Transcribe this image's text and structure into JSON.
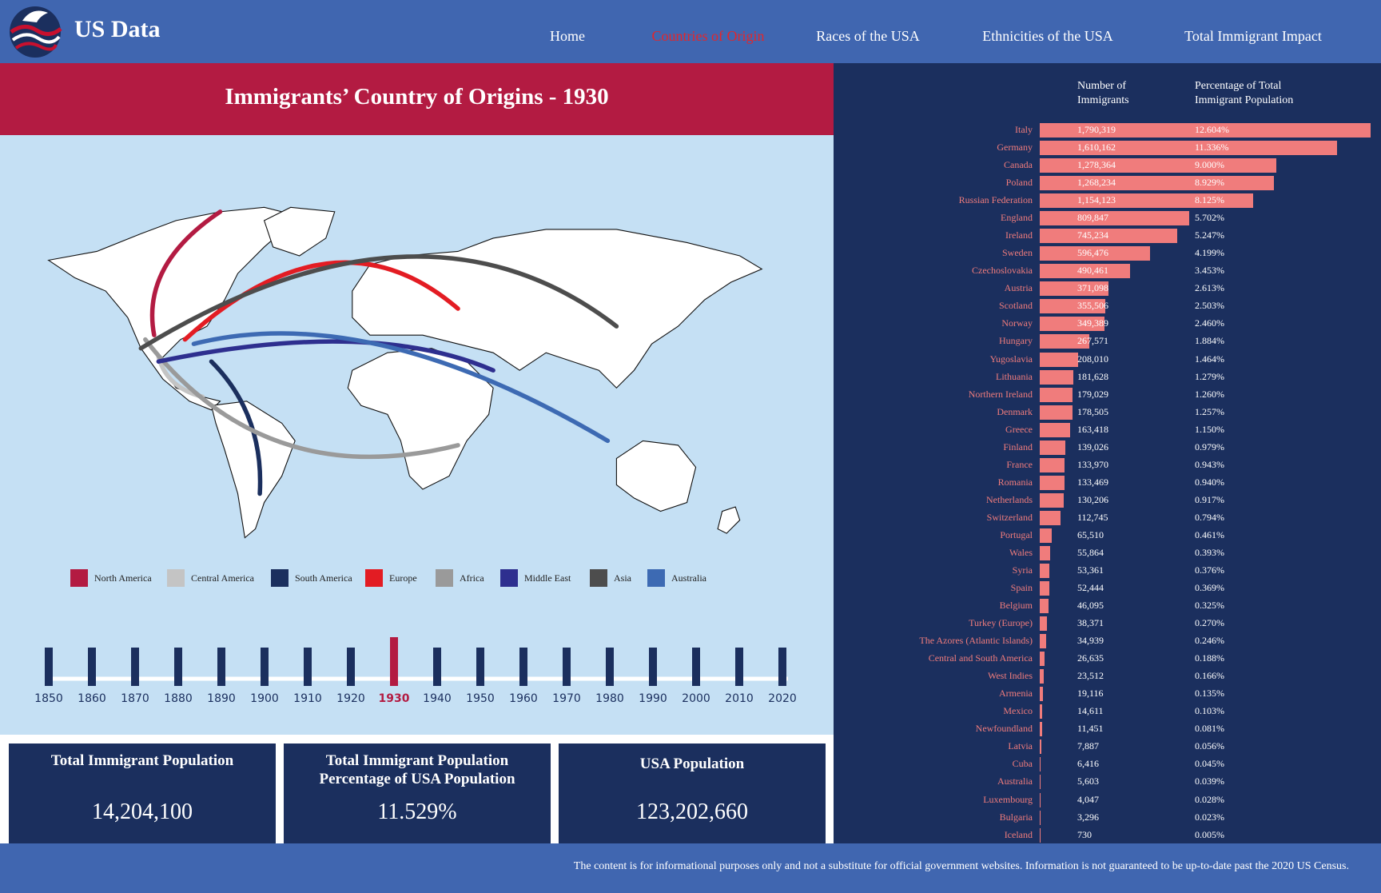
{
  "nav": {
    "brand": "US Data",
    "links": [
      {
        "label": "Home",
        "active": false
      },
      {
        "label": "Countries of Origin",
        "active": true
      },
      {
        "label": "Races of the USA",
        "active": false
      },
      {
        "label": "Ethnicities of the USA",
        "active": false
      },
      {
        "label": "Total Immigrant Impact",
        "active": false
      }
    ]
  },
  "map": {
    "title": "Immigrants’ Country of Origins - 1930",
    "legend": [
      {
        "name": "North America",
        "color": "#b31b42"
      },
      {
        "name": "Central America",
        "color": "#c4c4c4"
      },
      {
        "name": "South America",
        "color": "#1b2f5e"
      },
      {
        "name": "Europe",
        "color": "#e31c23"
      },
      {
        "name": "Africa",
        "color": "#9a9a9a"
      },
      {
        "name": "Middle East",
        "color": "#2e2f8f"
      },
      {
        "name": "Asia",
        "color": "#4d4d4d"
      },
      {
        "name": "Australia",
        "color": "#3d6ab3"
      }
    ]
  },
  "timeline": {
    "years": [
      1850,
      1860,
      1870,
      1880,
      1890,
      1900,
      1910,
      1920,
      1930,
      1940,
      1950,
      1960,
      1970,
      1980,
      1990,
      2000,
      2010,
      2020
    ],
    "selected": 1930
  },
  "stats": [
    {
      "label": "Total Immigrant Population",
      "value": "14,204,100"
    },
    {
      "label": "Total Immigrant Population Percentage of USA Population",
      "value": "11.529%"
    },
    {
      "label": "USA Population",
      "value": "123,202,660"
    }
  ],
  "table": {
    "headers": [
      "Number of Immigrants",
      "Percentage of Total Immigrant Population"
    ],
    "rows": [
      {
        "country": "Italy",
        "immigrants": "1,790,319",
        "share": 12.604,
        "share_label": "12.604%"
      },
      {
        "country": "Germany",
        "immigrants": "1,610,162",
        "share": 11.336,
        "share_label": "11.336%"
      },
      {
        "country": "Canada",
        "immigrants": "1,278,364",
        "share": 9.0,
        "share_label": "9.000%"
      },
      {
        "country": "Poland",
        "immigrants": "1,268,234",
        "share": 8.929,
        "share_label": "8.929%"
      },
      {
        "country": "Russian Federation",
        "immigrants": "1,154,123",
        "share": 8.125,
        "share_label": "8.125%"
      },
      {
        "country": "England",
        "immigrants": "809,847",
        "share": 5.702,
        "share_label": "5.702%"
      },
      {
        "country": "Ireland",
        "immigrants": "745,234",
        "share": 5.247,
        "share_label": "5.247%"
      },
      {
        "country": "Sweden",
        "immigrants": "596,476",
        "share": 4.199,
        "share_label": "4.199%"
      },
      {
        "country": "Czechoslovakia",
        "immigrants": "490,461",
        "share": 3.453,
        "share_label": "3.453%"
      },
      {
        "country": "Austria",
        "immigrants": "371,098",
        "share": 2.613,
        "share_label": "2.613%"
      },
      {
        "country": "Scotland",
        "immigrants": "355,506",
        "share": 2.503,
        "share_label": "2.503%"
      },
      {
        "country": "Norway",
        "immigrants": "349,389",
        "share": 2.46,
        "share_label": "2.460%"
      },
      {
        "country": "Hungary",
        "immigrants": "267,571",
        "share": 1.884,
        "share_label": "1.884%"
      },
      {
        "country": "Yugoslavia",
        "immigrants": "208,010",
        "share": 1.464,
        "share_label": "1.464%"
      },
      {
        "country": "Lithuania",
        "immigrants": "181,628",
        "share": 1.279,
        "share_label": "1.279%"
      },
      {
        "country": "Northern Ireland",
        "immigrants": "179,029",
        "share": 1.26,
        "share_label": "1.260%"
      },
      {
        "country": "Denmark",
        "immigrants": "178,505",
        "share": 1.257,
        "share_label": "1.257%"
      },
      {
        "country": "Greece",
        "immigrants": "163,418",
        "share": 1.15,
        "share_label": "1.150%"
      },
      {
        "country": "Finland",
        "immigrants": "139,026",
        "share": 0.979,
        "share_label": "0.979%"
      },
      {
        "country": "France",
        "immigrants": "133,970",
        "share": 0.943,
        "share_label": "0.943%"
      },
      {
        "country": "Romania",
        "immigrants": "133,469",
        "share": 0.94,
        "share_label": "0.940%"
      },
      {
        "country": "Netherlands",
        "immigrants": "130,206",
        "share": 0.917,
        "share_label": "0.917%"
      },
      {
        "country": "Switzerland",
        "immigrants": "112,745",
        "share": 0.794,
        "share_label": "0.794%"
      },
      {
        "country": "Portugal",
        "immigrants": "65,510",
        "share": 0.461,
        "share_label": "0.461%"
      },
      {
        "country": "Wales",
        "immigrants": "55,864",
        "share": 0.393,
        "share_label": "0.393%"
      },
      {
        "country": "Syria",
        "immigrants": "53,361",
        "share": 0.376,
        "share_label": "0.376%"
      },
      {
        "country": "Spain",
        "immigrants": "52,444",
        "share": 0.369,
        "share_label": "0.369%"
      },
      {
        "country": "Belgium",
        "immigrants": "46,095",
        "share": 0.325,
        "share_label": "0.325%"
      },
      {
        "country": "Turkey (Europe)",
        "immigrants": "38,371",
        "share": 0.27,
        "share_label": "0.270%"
      },
      {
        "country": "The Azores (Atlantic Islands)",
        "immigrants": "34,939",
        "share": 0.246,
        "share_label": "0.246%"
      },
      {
        "country": "Central and South America",
        "immigrants": "26,635",
        "share": 0.188,
        "share_label": "0.188%"
      },
      {
        "country": "West Indies",
        "immigrants": "23,512",
        "share": 0.166,
        "share_label": "0.166%"
      },
      {
        "country": "Armenia",
        "immigrants": "19,116",
        "share": 0.135,
        "share_label": "0.135%"
      },
      {
        "country": "Mexico",
        "immigrants": "14,611",
        "share": 0.103,
        "share_label": "0.103%"
      },
      {
        "country": "Newfoundland",
        "immigrants": "11,451",
        "share": 0.081,
        "share_label": "0.081%"
      },
      {
        "country": "Latvia",
        "immigrants": "7,887",
        "share": 0.056,
        "share_label": "0.056%"
      },
      {
        "country": "Cuba",
        "immigrants": "6,416",
        "share": 0.045,
        "share_label": "0.045%"
      },
      {
        "country": "Australia",
        "immigrants": "5,603",
        "share": 0.039,
        "share_label": "0.039%"
      },
      {
        "country": "Luxembourg",
        "immigrants": "4,047",
        "share": 0.028,
        "share_label": "0.028%"
      },
      {
        "country": "Bulgaria",
        "immigrants": "3,296",
        "share": 0.023,
        "share_label": "0.023%"
      },
      {
        "country": "Iceland",
        "immigrants": "730",
        "share": 0.005,
        "share_label": "0.005%"
      }
    ]
  },
  "footer": "The content is for informational purposes only and not a substitute for official government websites. Information is not guaranteed to be up-to-date past the 2020 US Census."
}
